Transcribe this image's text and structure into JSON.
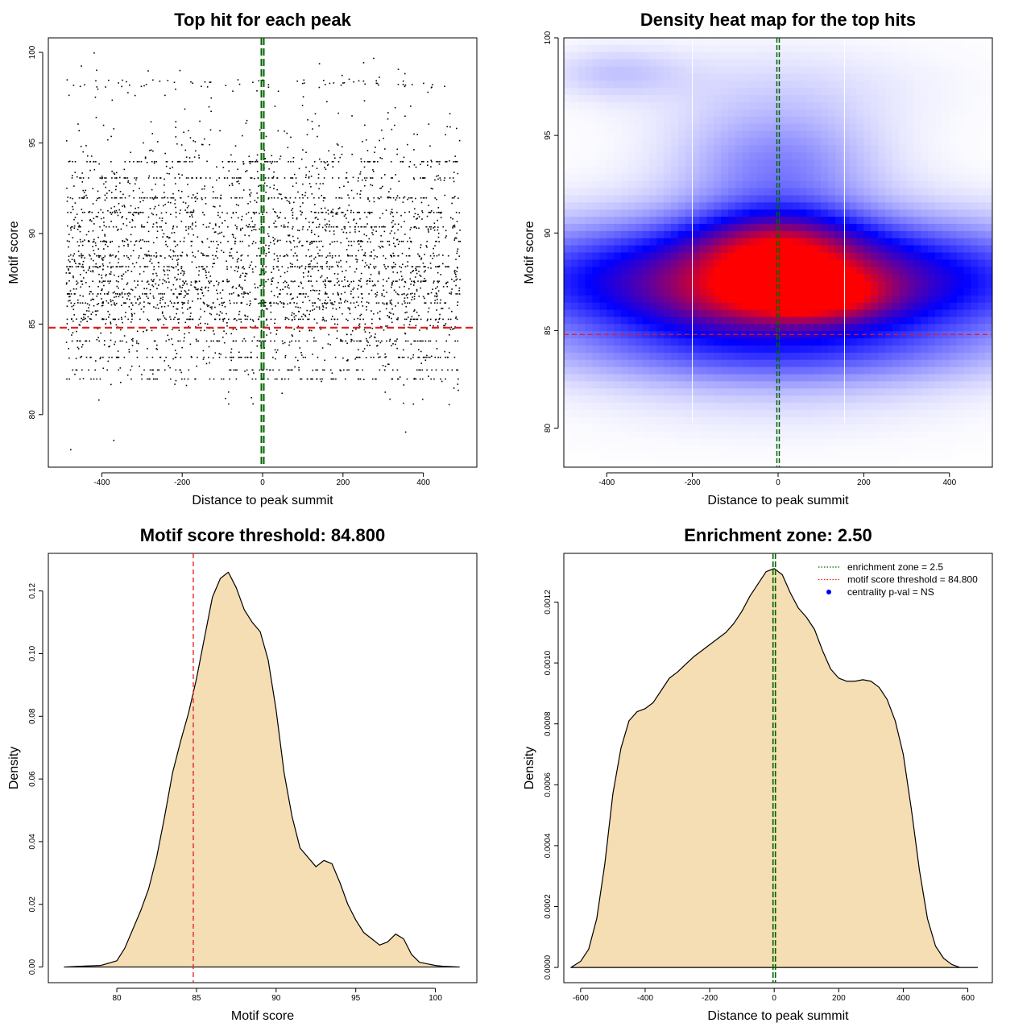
{
  "chart_data": [
    {
      "type": "scatter",
      "title": "Top hit for each peak",
      "xlabel": "Distance to peak summit",
      "ylabel": "Motif score",
      "xlim": [
        -533,
        533
      ],
      "ylim": [
        77.1,
        100.8
      ],
      "xticks": [
        -400,
        -200,
        0,
        200,
        400
      ],
      "xtick_labels": [
        "-400",
        "-200",
        "0",
        "200",
        "400"
      ],
      "yticks": [
        80,
        85,
        90,
        95,
        100
      ],
      "ytick_labels": [
        "80",
        "85",
        "90",
        "95",
        "100"
      ],
      "vline": {
        "x": 0,
        "color": "#006400",
        "style": "dashed"
      },
      "hline": {
        "y": 84.8,
        "color": "#e31a1c",
        "style": "dashed"
      },
      "point_color": "#000000",
      "n_points_approx": 3600,
      "x_range": [
        -490,
        490
      ],
      "y_mode": 87.3,
      "y_range": [
        78.1,
        100
      ]
    },
    {
      "type": "heatmap",
      "title": "Density heat map for the top hits",
      "xlabel": "Distance to peak summit",
      "ylabel": "Motif score",
      "xlim": [
        -500,
        500
      ],
      "ylim": [
        78,
        100
      ],
      "xticks": [
        -400,
        -200,
        0,
        200,
        400
      ],
      "xtick_labels": [
        "-400",
        "-200",
        "0",
        "200",
        "400"
      ],
      "yticks": [
        80,
        85,
        90,
        95,
        100
      ],
      "ytick_labels": [
        "80",
        "85",
        "90",
        "95",
        "100"
      ],
      "vline": {
        "x": 0,
        "color": "#006400",
        "style": "dashed"
      },
      "hline": {
        "y": 84.8,
        "color": "#e31a1c",
        "style": "dashed"
      },
      "white_vlines_x": [
        -200,
        155
      ],
      "color_scale": [
        "#ffffff",
        "#0000ff",
        "#ff0000"
      ],
      "density_kernels": [
        {
          "x": 0,
          "y": 87.5,
          "sx": 430,
          "sy": 2.1,
          "w": 1.0
        },
        {
          "x": 0,
          "y": 89.2,
          "sx": 130,
          "sy": 1.4,
          "w": 0.6
        },
        {
          "x": 90,
          "y": 86.8,
          "sx": 110,
          "sy": 0.9,
          "w": 0.55
        },
        {
          "x": -90,
          "y": 86.5,
          "sx": 140,
          "sy": 1.2,
          "w": 0.2
        },
        {
          "x": 0,
          "y": 93.5,
          "sx": 160,
          "sy": 2.0,
          "w": 0.28
        },
        {
          "x": -380,
          "y": 98.2,
          "sx": 110,
          "sy": 0.9,
          "w": 0.12
        },
        {
          "x": 0,
          "y": 97.5,
          "sx": 260,
          "sy": 1.6,
          "w": 0.07
        },
        {
          "x": 0,
          "y": 83.8,
          "sx": 350,
          "sy": 1.2,
          "w": 0.25
        },
        {
          "x": 0,
          "y": 81.8,
          "sx": 300,
          "sy": 1.6,
          "w": 0.07
        }
      ]
    },
    {
      "type": "area",
      "title": "Motif score threshold: 84.800",
      "xlabel": "Motif score",
      "ylabel": "Density",
      "xlim": [
        75.7,
        102.6
      ],
      "ylim": [
        -0.005,
        0.132
      ],
      "xticks": [
        80,
        85,
        90,
        95,
        100
      ],
      "xtick_labels": [
        "80",
        "85",
        "90",
        "95",
        "100"
      ],
      "yticks": [
        0,
        0.02,
        0.04,
        0.06,
        0.08,
        0.1,
        0.12
      ],
      "ytick_labels": [
        "0.00",
        "0.02",
        "0.04",
        "0.06",
        "0.08",
        "0.10",
        "0.12"
      ],
      "vline": {
        "x": 84.8,
        "color": "#e31a1c",
        "style": "dashed"
      },
      "fill": "#f5deb3",
      "x": [
        76.7,
        78,
        79,
        80,
        80.5,
        81,
        81.5,
        82,
        82.5,
        83,
        83.5,
        84,
        84.5,
        85,
        85.5,
        86,
        86.5,
        87,
        87.5,
        88,
        88.5,
        89,
        89.5,
        90,
        90.5,
        91,
        91.5,
        92,
        92.5,
        93,
        93.5,
        94,
        94.5,
        95,
        95.5,
        96,
        96.5,
        97,
        97.5,
        98,
        98.5,
        99,
        99.5,
        100,
        100.5,
        101,
        101.5
      ],
      "y": [
        0.0,
        0.0003,
        0.0005,
        0.002,
        0.006,
        0.012,
        0.018,
        0.025,
        0.035,
        0.048,
        0.062,
        0.072,
        0.081,
        0.092,
        0.105,
        0.118,
        0.124,
        0.126,
        0.121,
        0.114,
        0.11,
        0.107,
        0.098,
        0.082,
        0.062,
        0.048,
        0.038,
        0.035,
        0.032,
        0.034,
        0.033,
        0.027,
        0.02,
        0.015,
        0.011,
        0.009,
        0.007,
        0.008,
        0.0105,
        0.009,
        0.004,
        0.0015,
        0.001,
        0.0005,
        0.0002,
        0.0001,
        0.0
      ]
    },
    {
      "type": "area",
      "title": "Enrichment zone: 2.50",
      "xlabel": "Distance to peak summit",
      "ylabel": "Density",
      "xlim": [
        -652,
        676
      ],
      "ylim": [
        -5e-05,
        0.00136
      ],
      "xticks": [
        -600,
        -400,
        -200,
        0,
        200,
        400,
        600
      ],
      "xtick_labels": [
        "-600",
        "-400",
        "-200",
        "0",
        "200",
        "400",
        "600"
      ],
      "yticks": [
        0,
        0.0002,
        0.0004,
        0.0006,
        0.0008,
        0.001,
        0.0012
      ],
      "ytick_labels": [
        "0.0000",
        "0.0002",
        "0.0004",
        "0.0006",
        "0.0008",
        "0.0010",
        "0.0012"
      ],
      "vline": {
        "x": 0,
        "color": "#006400",
        "style": "dashed"
      },
      "fill": "#f5deb3",
      "x": [
        -630,
        -600,
        -575,
        -550,
        -525,
        -500,
        -475,
        -450,
        -425,
        -400,
        -375,
        -350,
        -325,
        -300,
        -275,
        -250,
        -225,
        -200,
        -175,
        -150,
        -125,
        -100,
        -75,
        -50,
        -25,
        0,
        25,
        50,
        75,
        100,
        125,
        150,
        175,
        200,
        225,
        250,
        275,
        300,
        325,
        350,
        375,
        400,
        425,
        450,
        475,
        500,
        525,
        550,
        575,
        600,
        630
      ],
      "y": [
        0.0,
        2e-05,
        6e-05,
        0.00016,
        0.00034,
        0.00057,
        0.00072,
        0.00081,
        0.00084,
        0.00085,
        0.00087,
        0.00091,
        0.00095,
        0.00097,
        0.000995,
        0.00102,
        0.00104,
        0.00106,
        0.00108,
        0.0011,
        0.00113,
        0.00117,
        0.00122,
        0.00126,
        0.0013,
        0.00131,
        0.00129,
        0.00123,
        0.00118,
        0.00115,
        0.00111,
        0.00104,
        0.00098,
        0.00095,
        0.00094,
        0.00094,
        0.000945,
        0.00094,
        0.00092,
        0.00088,
        0.00081,
        0.0007,
        0.00052,
        0.00032,
        0.00016,
        7e-05,
        3e-05,
        1e-05,
        0.0,
        0.0,
        0.0
      ],
      "legend": {
        "placement": "top-right",
        "entries": [
          {
            "label": "enrichment zone = 2.5",
            "color": "#006400",
            "kind": "dotted-line"
          },
          {
            "label": "motif score threshold = 84.800",
            "color": "#e31a1c",
            "kind": "dotted-line"
          },
          {
            "label": "centrality p-val = NS",
            "color": "#0000ff",
            "kind": "point"
          }
        ]
      }
    }
  ]
}
